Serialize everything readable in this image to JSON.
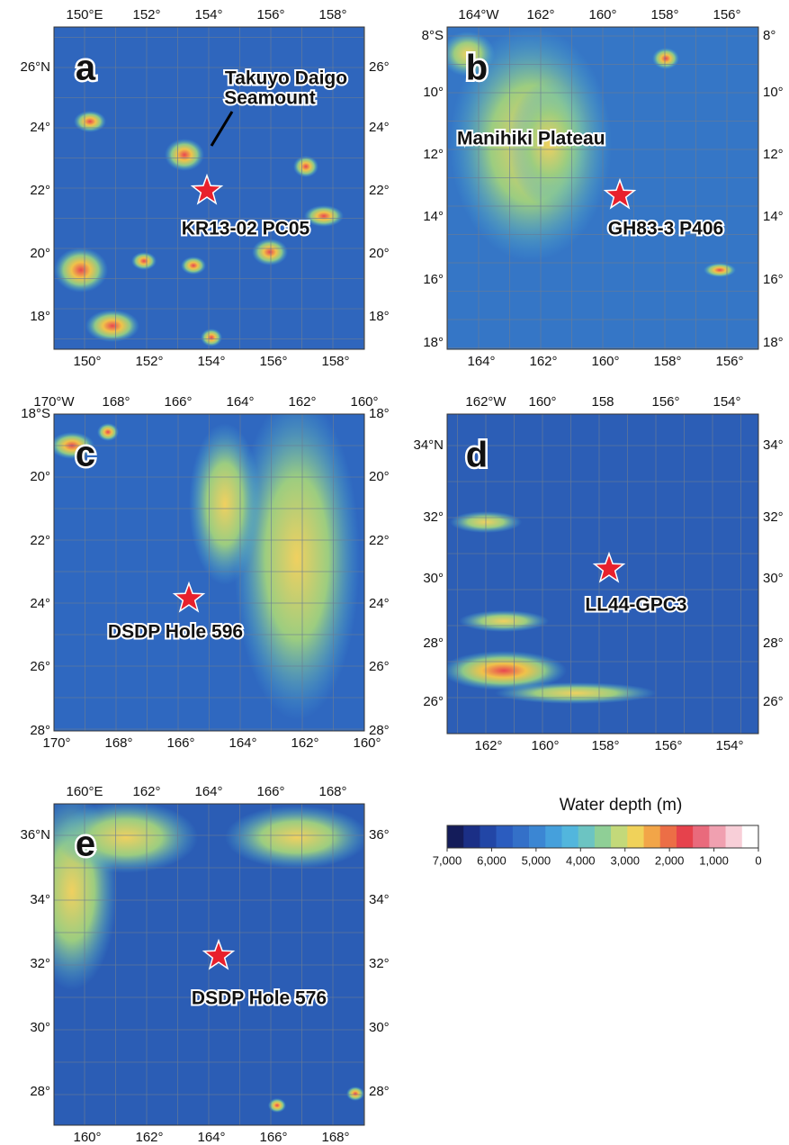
{
  "panels": [
    {
      "letter": "a",
      "top_ticks": [
        "150°E",
        "152°",
        "154°",
        "156°",
        "158°"
      ],
      "bottom_ticks": [
        "150°",
        "152°",
        "154°",
        "156°",
        "158°"
      ],
      "left_ticks": [
        "26°N",
        "24°",
        "22°",
        "20°",
        "18°"
      ],
      "right_ticks": [
        "26°",
        "24°",
        "22°",
        "20°",
        "18°"
      ],
      "labels": [
        "Takuyo Daigo",
        "Seamount",
        "KR13-02 PC05"
      ]
    },
    {
      "letter": "b",
      "top_ticks": [
        "164°W",
        "162°",
        "160°",
        "158°",
        "156°"
      ],
      "bottom_ticks": [
        "164°",
        "162°",
        "160°",
        "158°",
        "156°"
      ],
      "left_ticks": [
        "8°S",
        "10°",
        "12°",
        "14°",
        "16°",
        "18°"
      ],
      "right_ticks": [
        "8°",
        "10°",
        "12°",
        "14°",
        "16°",
        "18°"
      ],
      "labels": [
        "Manihiki Plateau",
        "GH83-3 P406"
      ]
    },
    {
      "letter": "c",
      "top_ticks": [
        "170°W",
        "168°",
        "166°",
        "164°",
        "162°",
        "160°"
      ],
      "bottom_ticks": [
        "170°",
        "168°",
        "166°",
        "164°",
        "162°",
        "160°"
      ],
      "left_ticks": [
        "18°S",
        "20°",
        "22°",
        "24°",
        "26°",
        "28°"
      ],
      "right_ticks": [
        "18°",
        "20°",
        "22°",
        "24°",
        "26°",
        "28°"
      ],
      "labels": [
        "DSDP Hole 596"
      ]
    },
    {
      "letter": "d",
      "top_ticks": [
        "162°W",
        "160°",
        "158",
        "156°",
        "154°"
      ],
      "bottom_ticks": [
        "162°",
        "160°",
        "158°",
        "156°",
        "154°"
      ],
      "left_ticks": [
        "34°N",
        "32°",
        "30°",
        "28°",
        "26°"
      ],
      "right_ticks": [
        "34°",
        "32°",
        "30°",
        "28°",
        "26°"
      ],
      "labels": [
        "LL44-GPC3"
      ]
    },
    {
      "letter": "e",
      "top_ticks": [
        "160°E",
        "162°",
        "164°",
        "166°",
        "168°"
      ],
      "bottom_ticks": [
        "160°",
        "162°",
        "164°",
        "166°",
        "168°"
      ],
      "left_ticks": [
        "36°N",
        "34°",
        "32°",
        "30°",
        "28°"
      ],
      "right_ticks": [
        "36°",
        "34°",
        "32°",
        "30°",
        "28°"
      ],
      "labels": [
        "DSDP Hole 576"
      ]
    }
  ],
  "legend": {
    "title": "Water depth (m)",
    "labels": [
      "7,000",
      "6,000",
      "5,000",
      "4,000",
      "3,000",
      "2,000",
      "1,000",
      "0"
    ]
  }
}
